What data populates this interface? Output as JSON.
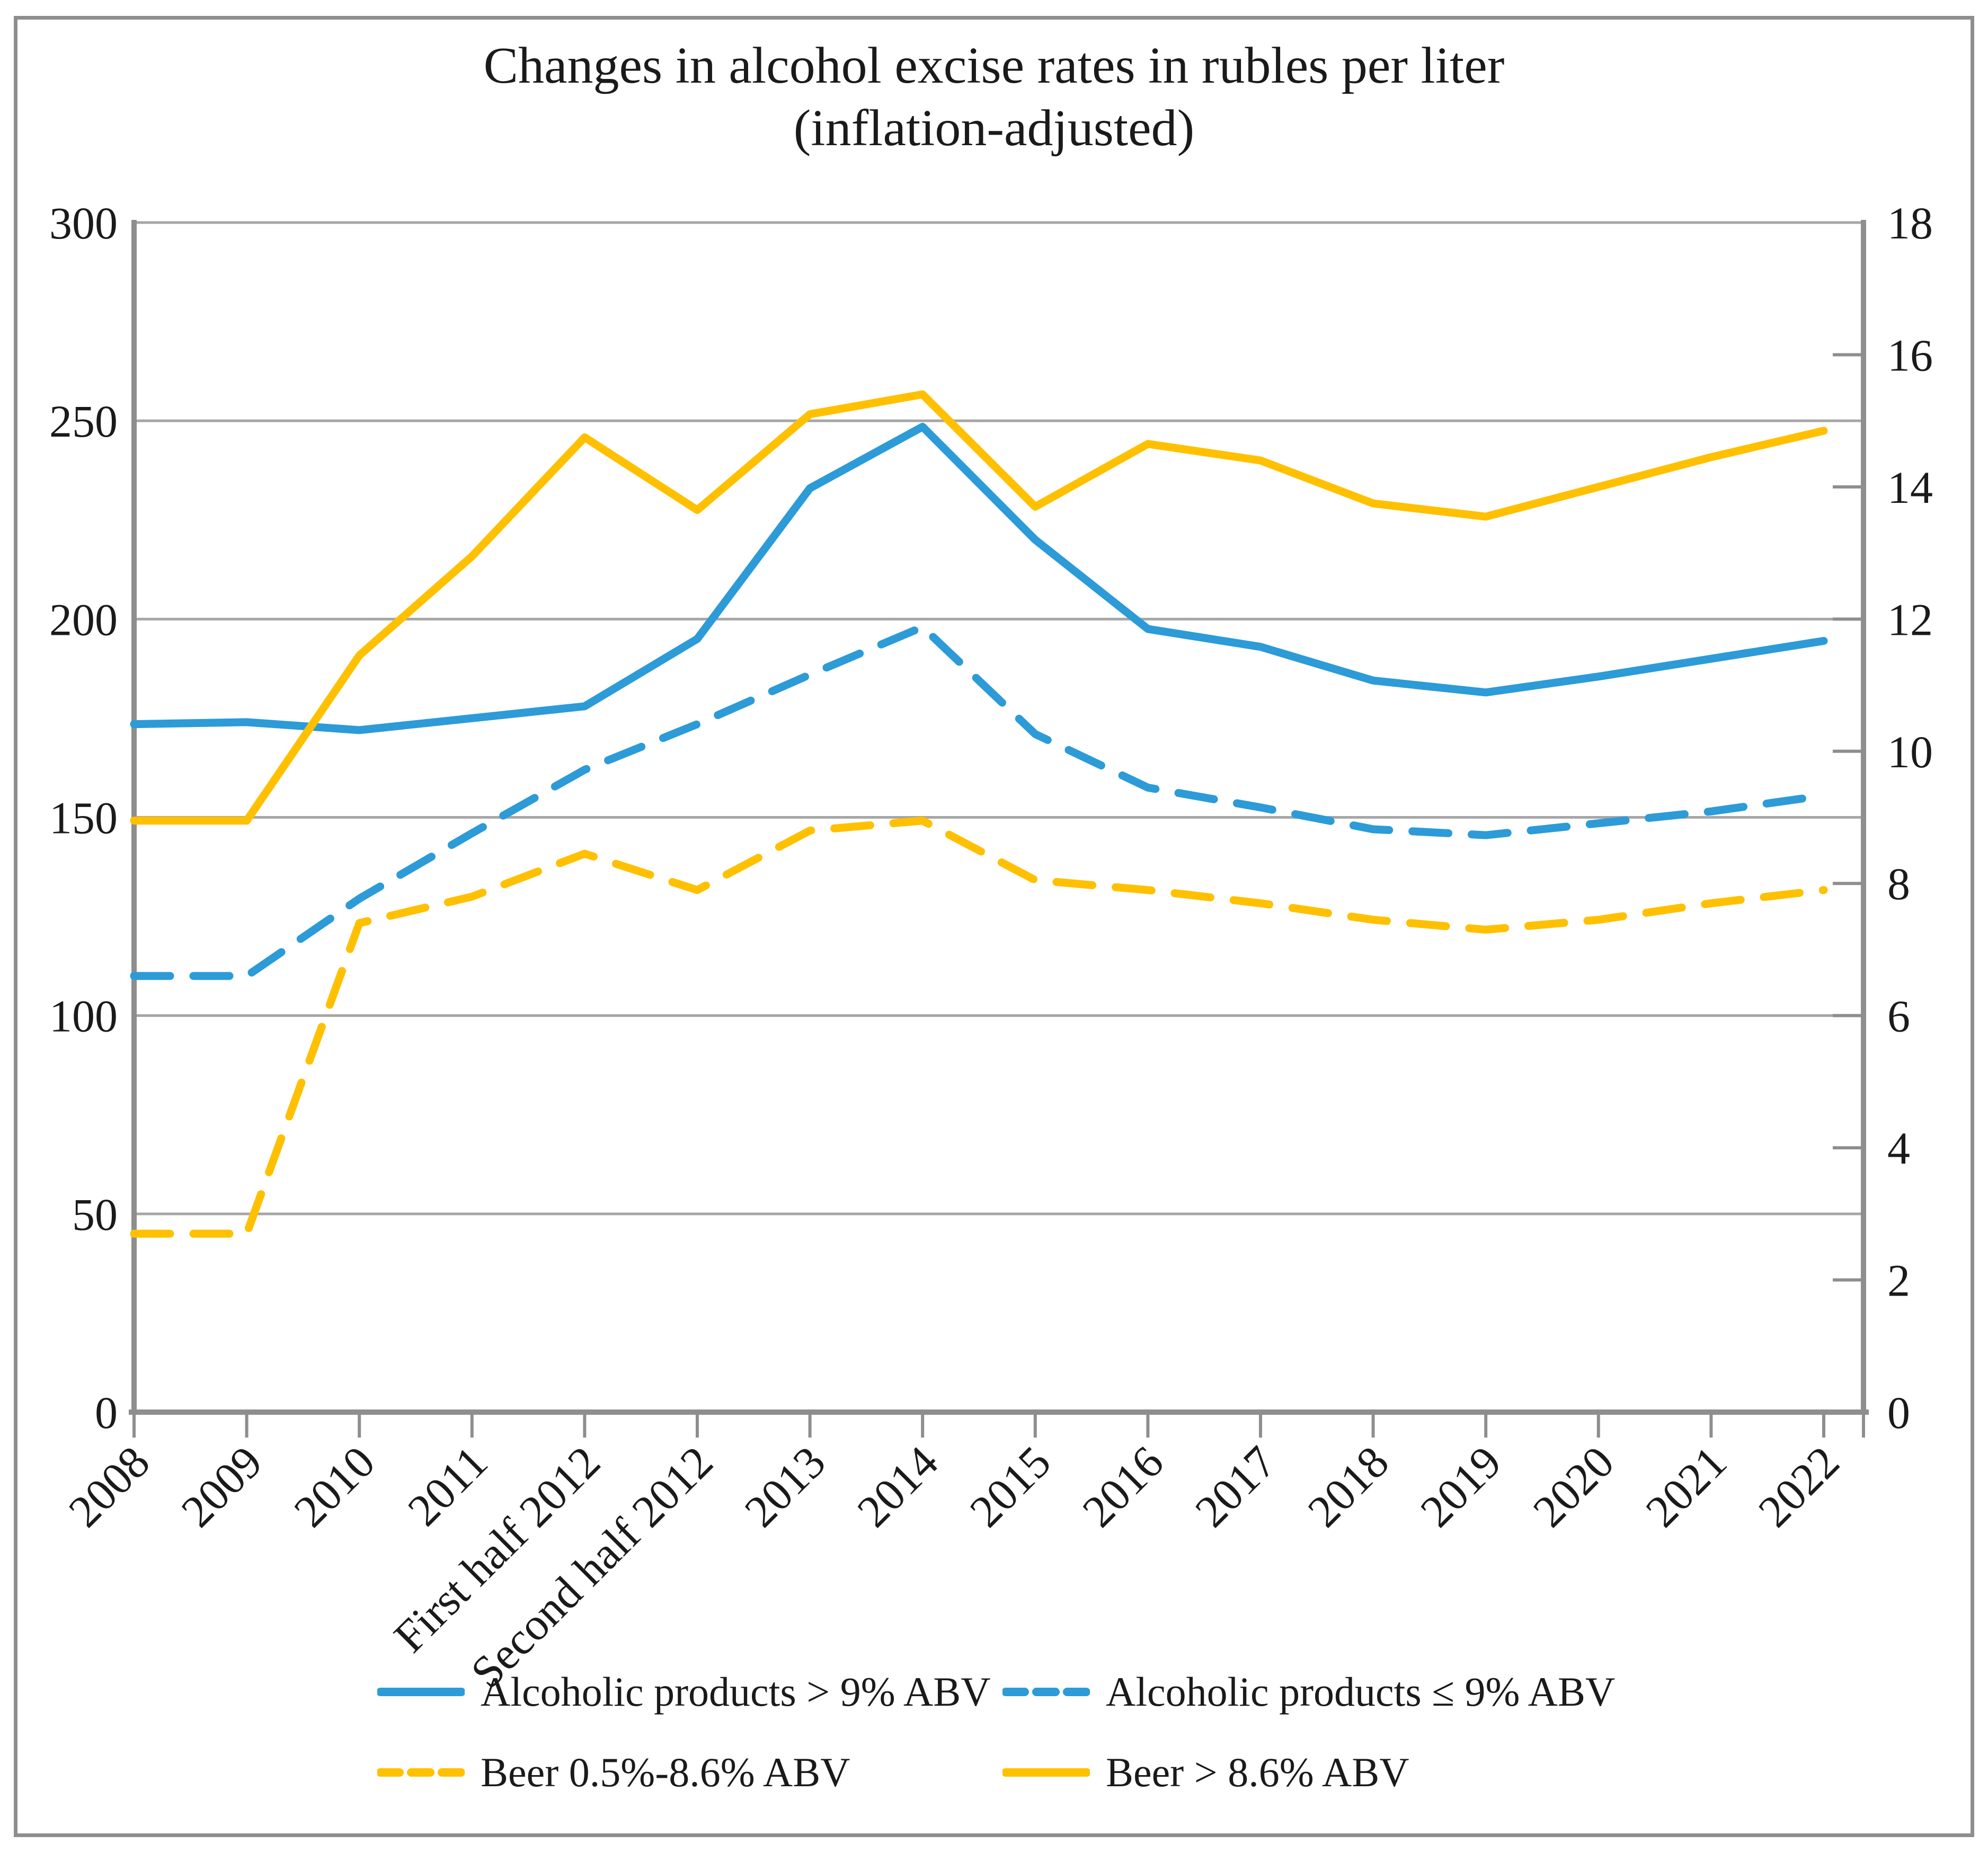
{
  "figure": {
    "title_line1": "Changes in alcohol excise rates in rubles per liter",
    "title_line2": "(inflation-adjusted)"
  },
  "chart_data": {
    "type": "line",
    "title": "Changes in alcohol excise rates in rubles per liter (inflation-adjusted)",
    "categories": [
      "2008",
      "2009",
      "2010",
      "2011",
      "First half 2012",
      "Second half 2012",
      "2013",
      "2014",
      "2015",
      "2016",
      "2017",
      "2018",
      "2019",
      "2020",
      "2021",
      "2022"
    ],
    "left_axis": {
      "min": 0,
      "max": 300,
      "step": 50,
      "tick_labels": [
        "0",
        "50",
        "100",
        "150",
        "200",
        "250",
        "300"
      ]
    },
    "right_axis": {
      "min": 0,
      "max": 18,
      "step": 2,
      "tick_labels": [
        "0",
        "2",
        "4",
        "6",
        "8",
        "10",
        "12",
        "14",
        "16",
        "18"
      ]
    },
    "grid": true,
    "legend_position": "bottom",
    "colors": {
      "blue": "#2c9bd7",
      "yellow": "#ffc000",
      "gridline": "#a6a6a6",
      "axis": "#8e8e8e"
    },
    "series": [
      {
        "name": "Alcoholic products > 9% ABV",
        "color": "#2c9bd7",
        "style": "solid",
        "axis": "left",
        "values": [
          173.5,
          174,
          172,
          175,
          178,
          195,
          233,
          248.5,
          220,
          197.5,
          193,
          184.5,
          181.5,
          185.5,
          190,
          194.5
        ]
      },
      {
        "name": "Alcoholic products ≤ 9% ABV",
        "color": "#2c9bd7",
        "style": "dashed",
        "axis": "left",
        "values": [
          110,
          110,
          129.5,
          146,
          162,
          173.5,
          186,
          198,
          171,
          157.5,
          152.5,
          147,
          145.5,
          148.5,
          151.5,
          155.5
        ]
      },
      {
        "name": "Beer 0.5%-8.6% ABV",
        "color": "#ffc000",
        "style": "dashed",
        "axis": "right",
        "values": [
          2.7,
          2.7,
          7.4,
          7.8,
          8.45,
          7.9,
          8.8,
          8.95,
          8.05,
          7.9,
          7.7,
          7.45,
          7.3,
          7.45,
          7.7,
          7.9
        ]
      },
      {
        "name": "Beer > 8.6% ABV",
        "color": "#ffc000",
        "style": "solid",
        "axis": "right",
        "values": [
          8.95,
          8.95,
          11.45,
          12.95,
          14.75,
          13.65,
          15.1,
          15.4,
          13.7,
          14.65,
          14.4,
          13.75,
          13.55,
          14.0,
          14.45,
          14.85
        ]
      }
    ]
  }
}
